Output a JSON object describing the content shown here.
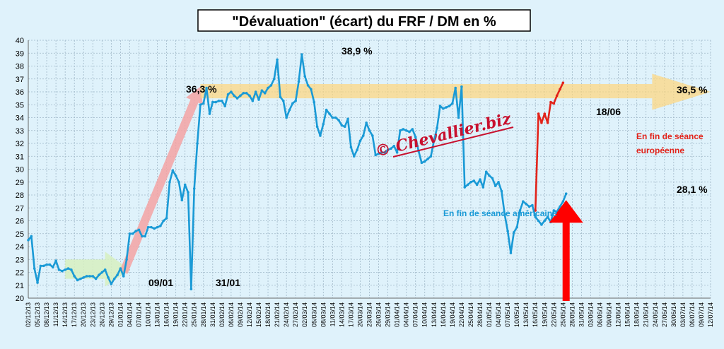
{
  "chart_data": {
    "type": "line",
    "title": "\"Dévaluation\" (écart) du FRF / DM en %",
    "ylim": [
      20,
      40
    ],
    "yticks": [
      20,
      21,
      22,
      23,
      24,
      25,
      26,
      27,
      28,
      29,
      30,
      31,
      32,
      33,
      34,
      35,
      36,
      37,
      38,
      39,
      40
    ],
    "grid": true,
    "xtick_labels": [
      "02/12/13",
      "05/12/13",
      "08/12/13",
      "11/12/13",
      "14/12/13",
      "17/12/13",
      "20/12/13",
      "23/12/13",
      "26/12/13",
      "29/12/13",
      "01/01/14",
      "04/01/14",
      "07/01/14",
      "10/01/14",
      "13/01/14",
      "16/01/14",
      "19/01/14",
      "22/01/14",
      "25/01/14",
      "28/01/14",
      "31/01/14",
      "03/02/14",
      "06/02/14",
      "09/02/14",
      "12/02/14",
      "15/02/14",
      "18/02/14",
      "21/02/14",
      "24/02/14",
      "27/02/14",
      "02/03/14",
      "05/03/14",
      "08/03/14",
      "11/03/14",
      "14/03/14",
      "17/03/14",
      "20/03/14",
      "23/03/14",
      "26/03/14",
      "29/03/14",
      "01/04/14",
      "04/04/14",
      "07/04/14",
      "10/04/14",
      "13/04/14",
      "16/04/14",
      "19/04/14",
      "22/04/14",
      "25/04/14",
      "28/04/14",
      "01/05/14",
      "04/05/14",
      "07/05/14",
      "10/05/14",
      "13/05/14",
      "16/05/14",
      "19/05/14",
      "22/05/14",
      "25/05/14",
      "28/05/14",
      "31/05/14",
      "03/06/14",
      "06/06/14",
      "09/06/14",
      "12/06/14",
      "15/06/14",
      "18/06/14",
      "21/06/14",
      "24/06/14",
      "27/06/14",
      "30/06/14",
      "03/07/14",
      "06/07/14",
      "09/07/14",
      "12/07/14"
    ],
    "series": [
      {
        "color": "#1a9ad6",
        "points": [
          [
            0,
            24.5
          ],
          [
            1,
            24.8
          ],
          [
            2,
            22.3
          ],
          [
            3,
            21.2
          ],
          [
            4,
            22.5
          ],
          [
            5,
            22.5
          ],
          [
            6,
            22.6
          ],
          [
            7,
            22.6
          ],
          [
            8,
            22.4
          ],
          [
            9,
            22.9
          ],
          [
            10,
            22.2
          ],
          [
            11,
            22.1
          ],
          [
            12,
            22.2
          ],
          [
            13,
            22.3
          ],
          [
            14,
            22.2
          ],
          [
            15,
            21.7
          ],
          [
            16,
            21.4
          ],
          [
            17,
            21.5
          ],
          [
            18,
            21.6
          ],
          [
            19,
            21.7
          ],
          [
            20,
            21.7
          ],
          [
            21,
            21.7
          ],
          [
            22,
            21.5
          ],
          [
            23,
            21.8
          ],
          [
            24,
            22.0
          ],
          [
            25,
            22.2
          ],
          [
            26,
            21.6
          ],
          [
            27,
            21.1
          ],
          [
            28,
            21.5
          ],
          [
            29,
            21.8
          ],
          [
            30,
            22.3
          ],
          [
            31,
            21.7
          ],
          [
            32,
            23.0
          ],
          [
            33,
            25.0
          ],
          [
            34,
            25.0
          ],
          [
            35,
            25.2
          ],
          [
            36,
            25.3
          ],
          [
            37,
            24.8
          ],
          [
            38,
            24.8
          ],
          [
            39,
            25.5
          ],
          [
            40,
            25.5
          ],
          [
            41,
            25.4
          ],
          [
            42,
            25.5
          ],
          [
            43,
            25.6
          ],
          [
            44,
            26.0
          ],
          [
            45,
            26.2
          ],
          [
            46,
            29.0
          ],
          [
            47,
            29.9
          ],
          [
            48,
            29.5
          ],
          [
            49,
            29.0
          ],
          [
            50,
            27.6
          ],
          [
            51,
            28.8
          ],
          [
            52,
            28.2
          ],
          [
            53,
            20.7
          ],
          [
            54,
            28.5
          ],
          [
            55,
            32.0
          ],
          [
            56,
            35.0
          ],
          [
            57,
            35.1
          ],
          [
            58,
            36.3
          ],
          [
            59,
            34.3
          ],
          [
            60,
            35.2
          ],
          [
            61,
            35.2
          ],
          [
            62,
            35.3
          ],
          [
            63,
            35.3
          ],
          [
            64,
            34.9
          ],
          [
            65,
            35.8
          ],
          [
            66,
            36.0
          ],
          [
            67,
            35.7
          ],
          [
            68,
            35.5
          ],
          [
            69,
            35.7
          ],
          [
            70,
            35.9
          ],
          [
            71,
            35.9
          ],
          [
            72,
            35.7
          ],
          [
            73,
            35.3
          ],
          [
            74,
            36.0
          ],
          [
            75,
            35.4
          ],
          [
            76,
            36.1
          ],
          [
            77,
            35.9
          ],
          [
            78,
            36.3
          ],
          [
            79,
            36.5
          ],
          [
            80,
            37.0
          ],
          [
            81,
            38.5
          ],
          [
            82,
            35.6
          ],
          [
            83,
            35.3
          ],
          [
            84,
            34.0
          ],
          [
            85,
            34.6
          ],
          [
            86,
            35.1
          ],
          [
            87,
            35.3
          ],
          [
            88,
            36.8
          ],
          [
            89,
            38.9
          ],
          [
            90,
            37.2
          ],
          [
            91,
            36.5
          ],
          [
            92,
            36.2
          ],
          [
            93,
            35.2
          ],
          [
            94,
            33.3
          ],
          [
            95,
            32.6
          ],
          [
            96,
            33.5
          ],
          [
            97,
            34.6
          ],
          [
            98,
            34.3
          ],
          [
            99,
            34.0
          ],
          [
            100,
            34.0
          ],
          [
            101,
            33.8
          ],
          [
            102,
            33.4
          ],
          [
            103,
            33.3
          ],
          [
            104,
            33.9
          ],
          [
            105,
            31.7
          ],
          [
            106,
            31.0
          ],
          [
            107,
            31.5
          ],
          [
            108,
            32.2
          ],
          [
            109,
            32.6
          ],
          [
            110,
            33.6
          ],
          [
            111,
            33.0
          ],
          [
            112,
            32.6
          ],
          [
            113,
            31.1
          ],
          [
            114,
            31.2
          ],
          [
            115,
            31.3
          ],
          [
            116,
            31.3
          ],
          [
            117,
            31.5
          ],
          [
            118,
            31.6
          ],
          [
            119,
            31.8
          ],
          [
            120,
            31.3
          ],
          [
            121,
            33.0
          ],
          [
            122,
            33.1
          ],
          [
            123,
            33.0
          ],
          [
            124,
            32.9
          ],
          [
            125,
            33.1
          ],
          [
            126,
            32.5
          ],
          [
            127,
            31.4
          ],
          [
            128,
            30.5
          ],
          [
            129,
            30.6
          ],
          [
            130,
            30.8
          ],
          [
            131,
            31.0
          ],
          [
            132,
            32.2
          ],
          [
            133,
            33.2
          ],
          [
            134,
            34.9
          ],
          [
            135,
            34.7
          ],
          [
            136,
            34.8
          ],
          [
            137,
            34.9
          ],
          [
            138,
            35.1
          ],
          [
            139,
            36.3
          ],
          [
            140,
            34.0
          ],
          [
            141,
            36.4
          ],
          [
            142,
            28.6
          ],
          [
            143,
            28.8
          ],
          [
            144,
            29.0
          ],
          [
            145,
            29.1
          ],
          [
            146,
            28.8
          ],
          [
            147,
            29.2
          ],
          [
            148,
            28.6
          ],
          [
            149,
            29.8
          ],
          [
            150,
            29.5
          ],
          [
            151,
            29.3
          ],
          [
            152,
            28.7
          ],
          [
            153,
            29.0
          ],
          [
            154,
            28.3
          ],
          [
            155,
            26.5
          ],
          [
            156,
            25.2
          ],
          [
            157,
            23.5
          ],
          [
            158,
            25.1
          ],
          [
            159,
            25.5
          ],
          [
            160,
            26.8
          ],
          [
            161,
            27.5
          ],
          [
            162,
            27.3
          ],
          [
            163,
            27.1
          ],
          [
            164,
            27.2
          ],
          [
            165,
            26.3
          ],
          [
            166,
            26.0
          ],
          [
            167,
            25.7
          ],
          [
            168,
            26.0
          ],
          [
            169,
            26.3
          ],
          [
            170,
            25.9
          ],
          [
            171,
            26.8
          ],
          [
            172,
            26.7
          ],
          [
            173,
            27.1
          ],
          [
            174,
            27.5
          ],
          [
            175,
            28.1
          ]
        ]
      },
      {
        "color": "#e2231a",
        "points": [
          [
            165,
            26.8
          ],
          [
            166,
            34.3
          ],
          [
            167,
            33.6
          ],
          [
            168,
            34.3
          ],
          [
            169,
            33.6
          ],
          [
            170,
            35.2
          ],
          [
            171,
            35.1
          ],
          [
            172,
            35.7
          ],
          [
            173,
            36.2
          ],
          [
            174,
            36.7
          ]
        ]
      }
    ],
    "annotations": {
      "label_09_01": "09/01",
      "label_31_01": "31/01",
      "label_36_3": "36,3 %",
      "label_38_9": "38,9 %",
      "label_36_5": "36,5 %",
      "label_18_06": "18/06",
      "label_28_1": "28,1 %",
      "label_european": [
        "En fin de séance",
        "européenne"
      ],
      "label_american": "En fin de séance américaine"
    },
    "watermark": "© Chevallier.biz",
    "colors": {
      "american_line": "#1a9ad6",
      "european_line": "#e2231a",
      "trend_arrow_red": "#f4a3a3",
      "trend_arrow_yellow": "#ffd57a",
      "trend_arrow_green": "#d7f0c0",
      "up_arrow": "#ff0000"
    }
  }
}
